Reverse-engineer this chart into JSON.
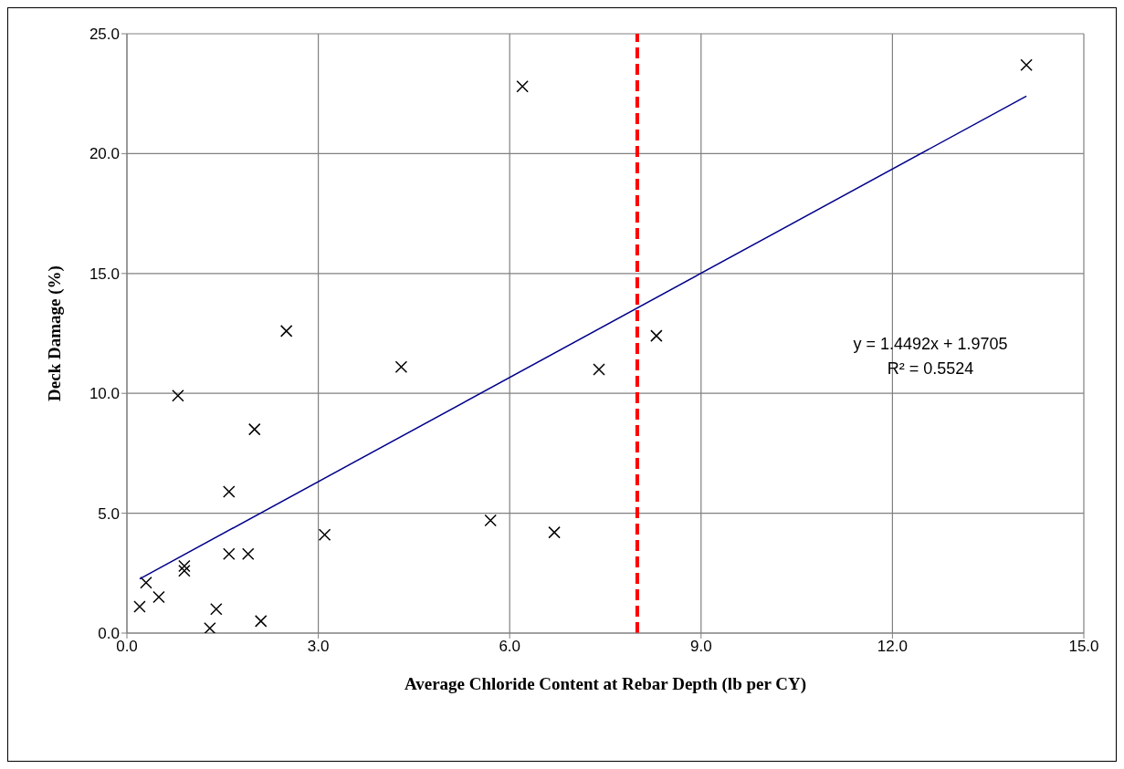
{
  "chart_data": {
    "type": "scatter",
    "xlabel": "Average Chloride Content at Rebar Depth (lb per CY)",
    "ylabel": "Deck Damage (%)",
    "xlim": [
      0,
      15
    ],
    "ylim": [
      0,
      25
    ],
    "xticks": [
      {
        "value": 0,
        "label": "0.0"
      },
      {
        "value": 3,
        "label": "3.0"
      },
      {
        "value": 6,
        "label": "6.0"
      },
      {
        "value": 9,
        "label": "9.0"
      },
      {
        "value": 12,
        "label": "12.0"
      },
      {
        "value": 15,
        "label": "15.0"
      }
    ],
    "yticks": [
      {
        "value": 0,
        "label": "0.0"
      },
      {
        "value": 5,
        "label": "5.0"
      },
      {
        "value": 10,
        "label": "10.0"
      },
      {
        "value": 15,
        "label": "15.0"
      },
      {
        "value": 20,
        "label": "20.0"
      },
      {
        "value": 25,
        "label": "25.0"
      }
    ],
    "grid": true,
    "marker": "cross",
    "series": [
      {
        "color": "#000000",
        "x": [
          0.2,
          0.3,
          0.5,
          0.8,
          0.9,
          0.9,
          1.3,
          1.4,
          1.6,
          1.6,
          1.9,
          2.0,
          2.1,
          2.5,
          3.1,
          4.3,
          5.7,
          6.2,
          6.7,
          7.4,
          8.3,
          14.1
        ],
        "values": [
          1.1,
          2.1,
          1.5,
          9.9,
          2.8,
          2.6,
          0.2,
          1.0,
          5.9,
          3.3,
          3.3,
          8.5,
          0.5,
          12.6,
          4.1,
          11.1,
          4.7,
          22.8,
          4.2,
          11.0,
          12.4,
          23.7
        ]
      },
      {
        "type": "line",
        "color": "#00008b",
        "marker": "none",
        "x": [
          0.2,
          14.1
        ],
        "values": [
          2.26,
          22.4
        ]
      }
    ],
    "ref_lines": [
      {
        "axis": "x",
        "value": 8,
        "color": "#ff0000",
        "line_style": "dashed"
      }
    ],
    "annotations": [
      "y = 1.4492x + 1.9705",
      "R² = 0.5524"
    ]
  }
}
